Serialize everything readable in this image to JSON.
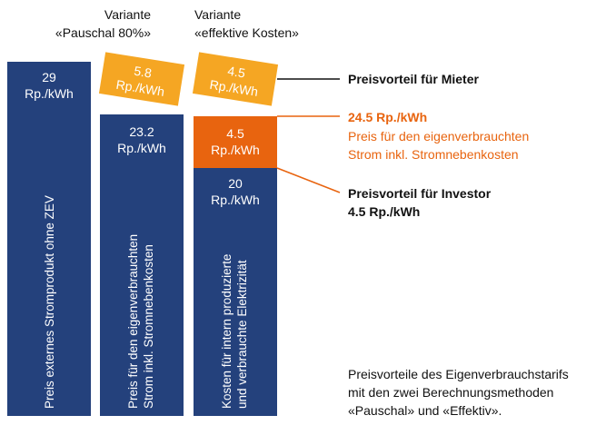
{
  "header": {
    "pauschal": [
      "Variante",
      "«Pauschal 80%»"
    ],
    "effektiv": [
      "Variante",
      "«effektive Kosten»"
    ]
  },
  "columns": [
    {
      "blocks": [
        {
          "value": "29",
          "unit": "Rp./kWh"
        }
      ],
      "caption": [
        "Preis externes Stromprodukt ohne ZEV"
      ]
    },
    {
      "tilted": {
        "value": "5.8",
        "unit": "Rp./kWh"
      },
      "blocks": [
        {
          "value": "23.2",
          "unit": "Rp./kWh"
        }
      ],
      "caption": [
        "Preis für den eigenverbrauchten",
        "Strom inkl. Stromnebenkosten"
      ]
    },
    {
      "tilted": {
        "value": "4.5",
        "unit": "Rp./kWh"
      },
      "blocks": [
        {
          "value": "4.5",
          "unit": "Rp./kWh"
        },
        {
          "value": "20",
          "unit": "Rp./kWh"
        }
      ],
      "caption": [
        "Kosten für intern produzierte",
        "und verbrauchte Elektrizität"
      ]
    }
  ],
  "annotations": {
    "mieter": [
      "Preisvorteil für Mieter"
    ],
    "preis": [
      "24.5 Rp./kWh",
      "Preis für den eigenverbrauchten",
      "Strom inkl. Stromnebenkosten"
    ],
    "investor": [
      "Preisvorteil für Investor",
      "4.5 Rp./kWh"
    ]
  },
  "note": [
    "Preisvorteile des Eigenverbrauchstarifs",
    "mit den zwei Berechnungsmethoden",
    "«Pauschal» und «Effektiv»."
  ]
}
